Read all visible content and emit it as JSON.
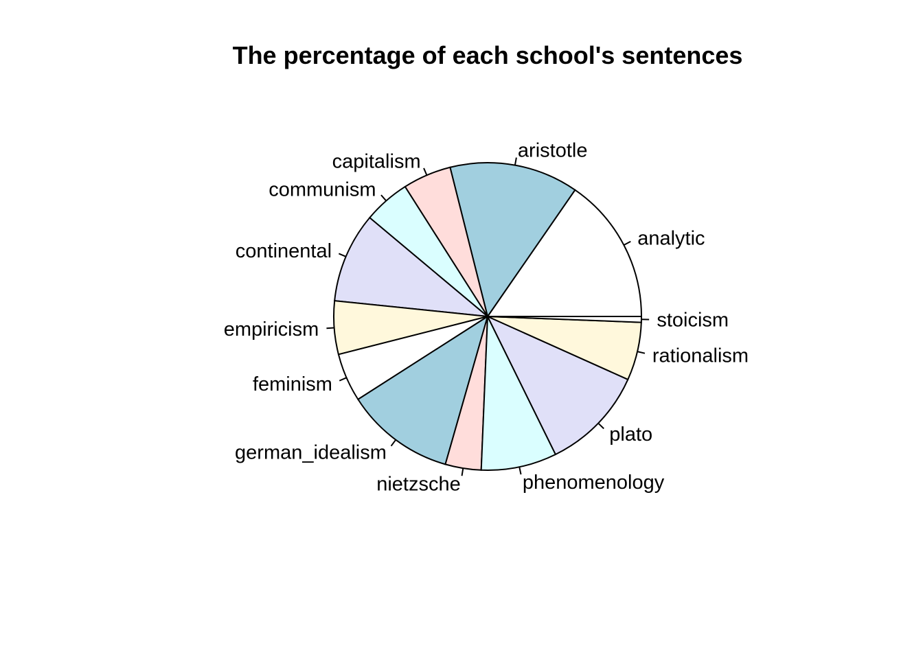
{
  "chart_data": {
    "type": "pie",
    "title": "The percentage of each school's sentences",
    "start_angle_deg": 0,
    "direction": "counterclockwise",
    "slices": [
      {
        "label": "analytic",
        "value": 15.1,
        "color": "#FFFFFF"
      },
      {
        "label": "aristotle",
        "value": 13.3,
        "color": "#A1CFDF"
      },
      {
        "label": "capitalism",
        "value": 5.0,
        "color": "#FFDDDB"
      },
      {
        "label": "communism",
        "value": 4.8,
        "color": "#DAFEFF"
      },
      {
        "label": "continental",
        "value": 9.3,
        "color": "#E0E0F8"
      },
      {
        "label": "empiricism",
        "value": 5.5,
        "color": "#FFF8DC"
      },
      {
        "label": "feminism",
        "value": 5.0,
        "color": "#FFFFFF"
      },
      {
        "label": "german_idealism",
        "value": 11.3,
        "color": "#A1CFDF"
      },
      {
        "label": "nietzsche",
        "value": 3.7,
        "color": "#FFDDDB"
      },
      {
        "label": "phenomenology",
        "value": 7.8,
        "color": "#DAFEFF"
      },
      {
        "label": "plato",
        "value": 10.8,
        "color": "#E0E0F8"
      },
      {
        "label": "rationalism",
        "value": 6.0,
        "color": "#FFF8DC"
      },
      {
        "label": "stoicism",
        "value": 0.6,
        "color": "#FFFFFF"
      }
    ]
  }
}
